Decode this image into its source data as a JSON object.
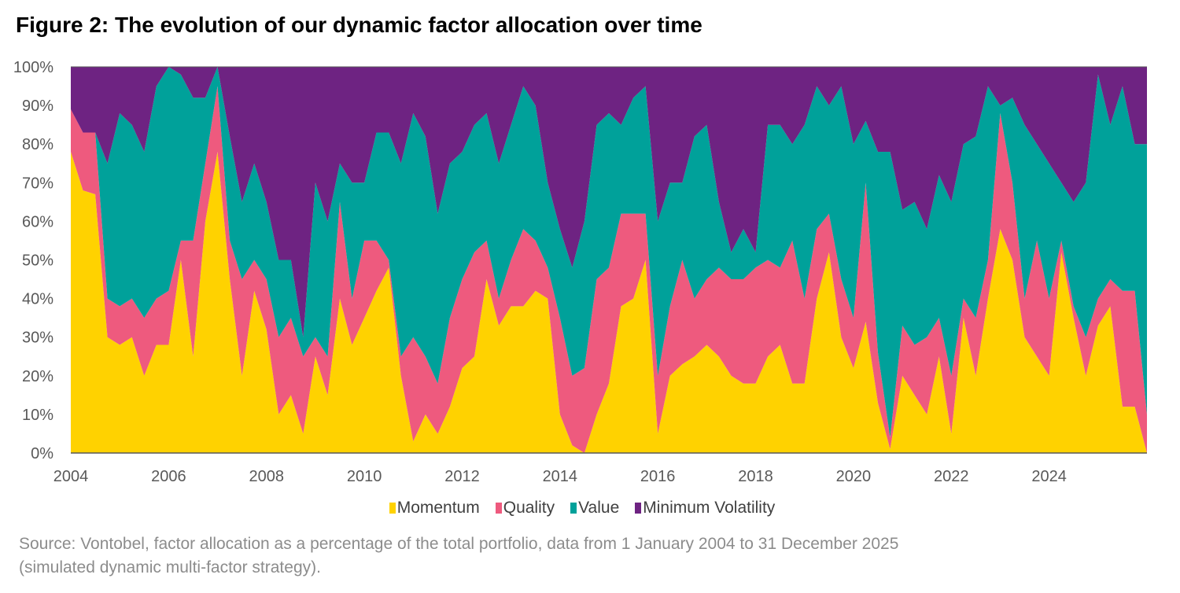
{
  "title": "Figure 2: The evolution of our dynamic factor allocation over time",
  "source_line1": "Source: Vontobel, factor allocation as a percentage of the total portfolio, data from 1 January 2004 to 31 December 2025",
  "source_line2": "(simulated dynamic multi-factor strategy).",
  "chart_data": {
    "type": "area",
    "stacked": true,
    "title": "Figure 2: The evolution of our dynamic factor allocation over time",
    "xlabel": "",
    "ylabel": "",
    "ylim": [
      0,
      100
    ],
    "xlim": [
      "2004-01",
      "2025-12"
    ],
    "y_ticks": [
      "0%",
      "10%",
      "20%",
      "30%",
      "40%",
      "50%",
      "60%",
      "70%",
      "80%",
      "90%",
      "100%"
    ],
    "x_ticks": [
      "2004",
      "2006",
      "2008",
      "2010",
      "2012",
      "2014",
      "2016",
      "2018",
      "2020",
      "2022",
      "2024"
    ],
    "grid": false,
    "legend_position": "bottom",
    "x": [
      "2004-01",
      "2004-04",
      "2004-07",
      "2004-10",
      "2005-01",
      "2005-04",
      "2005-07",
      "2005-10",
      "2006-01",
      "2006-04",
      "2006-07",
      "2006-10",
      "2007-01",
      "2007-04",
      "2007-07",
      "2007-10",
      "2008-01",
      "2008-04",
      "2008-07",
      "2008-10",
      "2009-01",
      "2009-04",
      "2009-07",
      "2009-10",
      "2010-01",
      "2010-04",
      "2010-07",
      "2010-10",
      "2011-01",
      "2011-04",
      "2011-07",
      "2011-10",
      "2012-01",
      "2012-04",
      "2012-07",
      "2012-10",
      "2013-01",
      "2013-04",
      "2013-07",
      "2013-10",
      "2014-01",
      "2014-04",
      "2014-07",
      "2014-10",
      "2015-01",
      "2015-04",
      "2015-07",
      "2015-10",
      "2016-01",
      "2016-04",
      "2016-07",
      "2016-10",
      "2017-01",
      "2017-04",
      "2017-07",
      "2017-10",
      "2018-01",
      "2018-04",
      "2018-07",
      "2018-10",
      "2019-01",
      "2019-04",
      "2019-07",
      "2019-10",
      "2020-01",
      "2020-04",
      "2020-07",
      "2020-10",
      "2021-01",
      "2021-04",
      "2021-07",
      "2021-10",
      "2022-01",
      "2022-04",
      "2022-07",
      "2022-10",
      "2023-01",
      "2023-04",
      "2023-07",
      "2023-10",
      "2024-01",
      "2024-04",
      "2024-07",
      "2024-10",
      "2025-01",
      "2025-04",
      "2025-07",
      "2025-10",
      "2025-12"
    ],
    "series": [
      {
        "name": "Momentum",
        "color": "#FFD200",
        "values": [
          78,
          68,
          67,
          30,
          28,
          30,
          20,
          28,
          28,
          50,
          25,
          60,
          78,
          45,
          20,
          42,
          32,
          10,
          15,
          5,
          25,
          15,
          40,
          28,
          35,
          42,
          48,
          20,
          3,
          10,
          5,
          12,
          22,
          25,
          45,
          33,
          38,
          38,
          42,
          40,
          10,
          2,
          0,
          10,
          18,
          38,
          40,
          50,
          5,
          20,
          23,
          25,
          28,
          25,
          20,
          18,
          18,
          25,
          28,
          18,
          18,
          40,
          52,
          30,
          22,
          34,
          13,
          1,
          20,
          15,
          10,
          25,
          5,
          35,
          20,
          40,
          58,
          50,
          30,
          25,
          20,
          52,
          35,
          20,
          33,
          38,
          12,
          12,
          0
        ]
      },
      {
        "name": "Quality",
        "color": "#EE5A7E",
        "values": [
          11,
          15,
          16,
          10,
          10,
          10,
          15,
          12,
          14,
          5,
          30,
          15,
          17,
          10,
          25,
          8,
          13,
          20,
          20,
          20,
          5,
          10,
          25,
          12,
          20,
          13,
          2,
          5,
          27,
          15,
          13,
          23,
          23,
          27,
          10,
          7,
          12,
          20,
          13,
          8,
          25,
          18,
          22,
          35,
          30,
          24,
          22,
          12,
          15,
          18,
          27,
          15,
          17,
          23,
          25,
          27,
          30,
          25,
          20,
          37,
          22,
          18,
          10,
          15,
          13,
          36,
          13,
          3,
          13,
          13,
          20,
          10,
          15,
          5,
          15,
          10,
          30,
          20,
          10,
          30,
          20,
          3,
          3,
          10,
          7,
          7,
          30,
          30,
          10
        ]
      },
      {
        "name": "Value",
        "color": "#00A19A",
        "values": [
          0,
          0,
          0,
          35,
          50,
          45,
          43,
          55,
          58,
          43,
          37,
          17,
          5,
          27,
          20,
          25,
          20,
          20,
          15,
          5,
          40,
          35,
          10,
          30,
          15,
          28,
          33,
          50,
          58,
          57,
          44,
          40,
          33,
          33,
          33,
          35,
          35,
          37,
          35,
          22,
          23,
          28,
          38,
          40,
          40,
          23,
          30,
          33,
          40,
          32,
          20,
          42,
          40,
          17,
          7,
          13,
          4,
          35,
          37,
          25,
          45,
          37,
          28,
          50,
          45,
          16,
          52,
          74,
          30,
          37,
          28,
          37,
          45,
          40,
          47,
          45,
          2,
          22,
          45,
          25,
          35,
          15,
          27,
          40,
          58,
          40,
          53,
          38,
          70
        ]
      },
      {
        "name": "Minimum Volatility",
        "color": "#6E2382",
        "values": [
          11,
          17,
          17,
          25,
          12,
          15,
          22,
          5,
          0,
          2,
          8,
          8,
          0,
          18,
          35,
          25,
          35,
          50,
          50,
          70,
          30,
          40,
          25,
          30,
          30,
          17,
          17,
          25,
          12,
          18,
          38,
          25,
          22,
          15,
          12,
          25,
          15,
          5,
          10,
          30,
          42,
          52,
          40,
          15,
          12,
          15,
          8,
          5,
          40,
          30,
          30,
          18,
          15,
          35,
          48,
          42,
          48,
          15,
          15,
          20,
          15,
          5,
          10,
          5,
          20,
          14,
          22,
          22,
          37,
          35,
          42,
          28,
          35,
          20,
          18,
          5,
          10,
          8,
          15,
          20,
          25,
          30,
          35,
          30,
          2,
          15,
          5,
          20,
          20
        ]
      }
    ]
  }
}
